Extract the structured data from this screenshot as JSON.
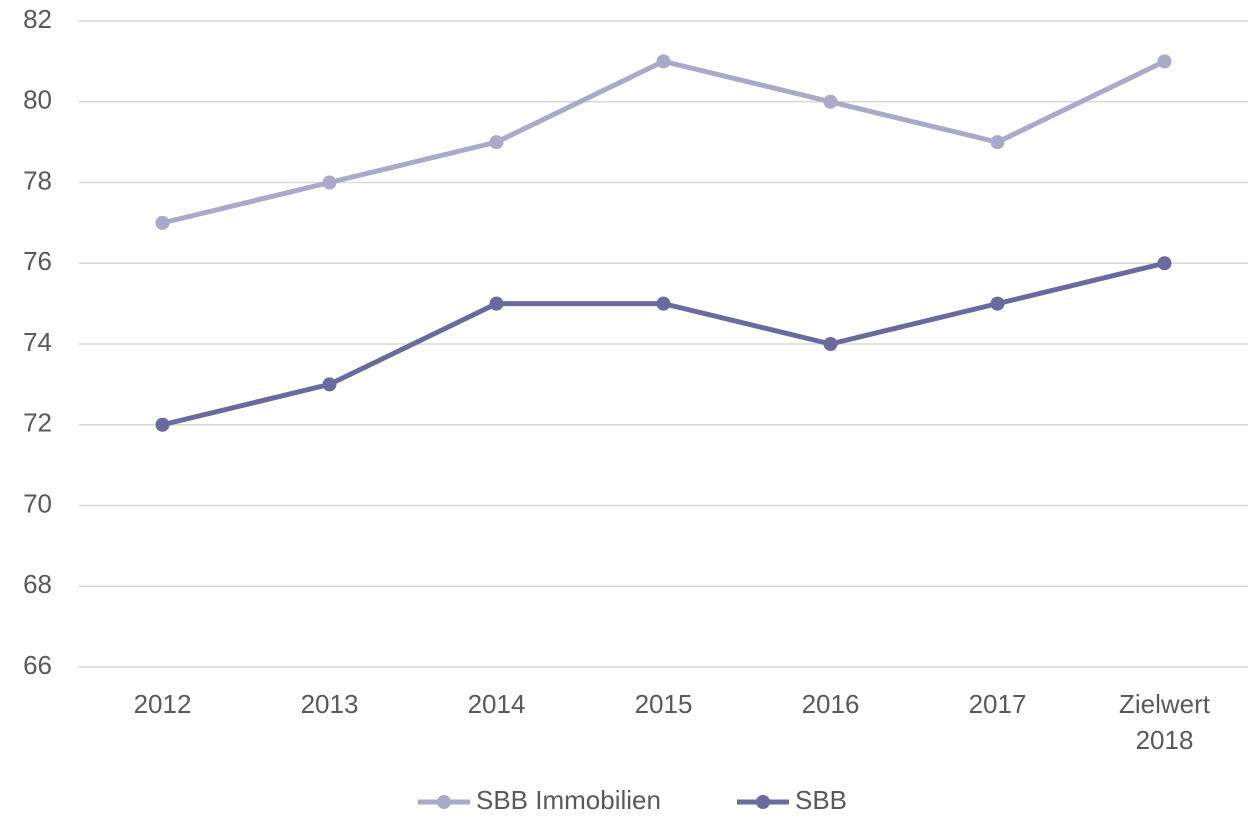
{
  "chart_data": {
    "type": "line",
    "categories": [
      "2012",
      "2013",
      "2014",
      "2015",
      "2016",
      "2017",
      "Zielwert 2018"
    ],
    "series": [
      {
        "name": "SBB Immobilien",
        "color": "#a9a9c9",
        "values": [
          77,
          78,
          79,
          81,
          80,
          79,
          81
        ]
      },
      {
        "name": "SBB",
        "color": "#6a6a9e",
        "values": [
          72,
          73,
          75,
          75,
          74,
          75,
          76
        ]
      }
    ],
    "ylim": [
      66,
      82
    ],
    "yticks": [
      66,
      68,
      70,
      72,
      74,
      76,
      78,
      80,
      82
    ],
    "grid": true,
    "legend": "bottom"
  }
}
